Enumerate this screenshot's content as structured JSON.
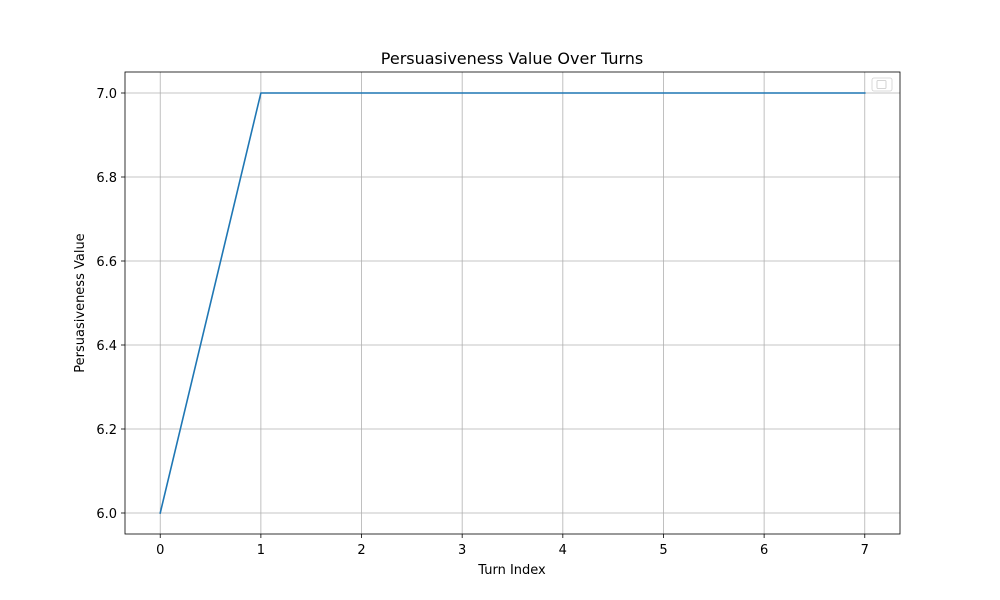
{
  "chart_data": {
    "type": "line",
    "title": "Persuasiveness Value Over Turns",
    "xlabel": "Turn Index",
    "ylabel": "Persuasiveness Value",
    "x": [
      0,
      1,
      2,
      3,
      4,
      5,
      6,
      7
    ],
    "series": [
      {
        "values": [
          6.0,
          7.0,
          7.0,
          7.0,
          7.0,
          7.0,
          7.0,
          7.0
        ],
        "color": "#1f77b4"
      }
    ],
    "xlim": [
      -0.35,
      7.35
    ],
    "ylim": [
      5.95,
      7.05
    ],
    "xticks": [
      0,
      1,
      2,
      3,
      4,
      5,
      6,
      7
    ],
    "xtick_labels": [
      "0",
      "1",
      "2",
      "3",
      "4",
      "5",
      "6",
      "7"
    ],
    "yticks": [
      6.0,
      6.2,
      6.4,
      6.6,
      6.8,
      7.0
    ],
    "ytick_labels": [
      "6.0",
      "6.2",
      "6.4",
      "6.6",
      "6.8",
      "7.0"
    ],
    "grid": true,
    "legend": "top-right",
    "grid_color": "#b0b0b0"
  }
}
